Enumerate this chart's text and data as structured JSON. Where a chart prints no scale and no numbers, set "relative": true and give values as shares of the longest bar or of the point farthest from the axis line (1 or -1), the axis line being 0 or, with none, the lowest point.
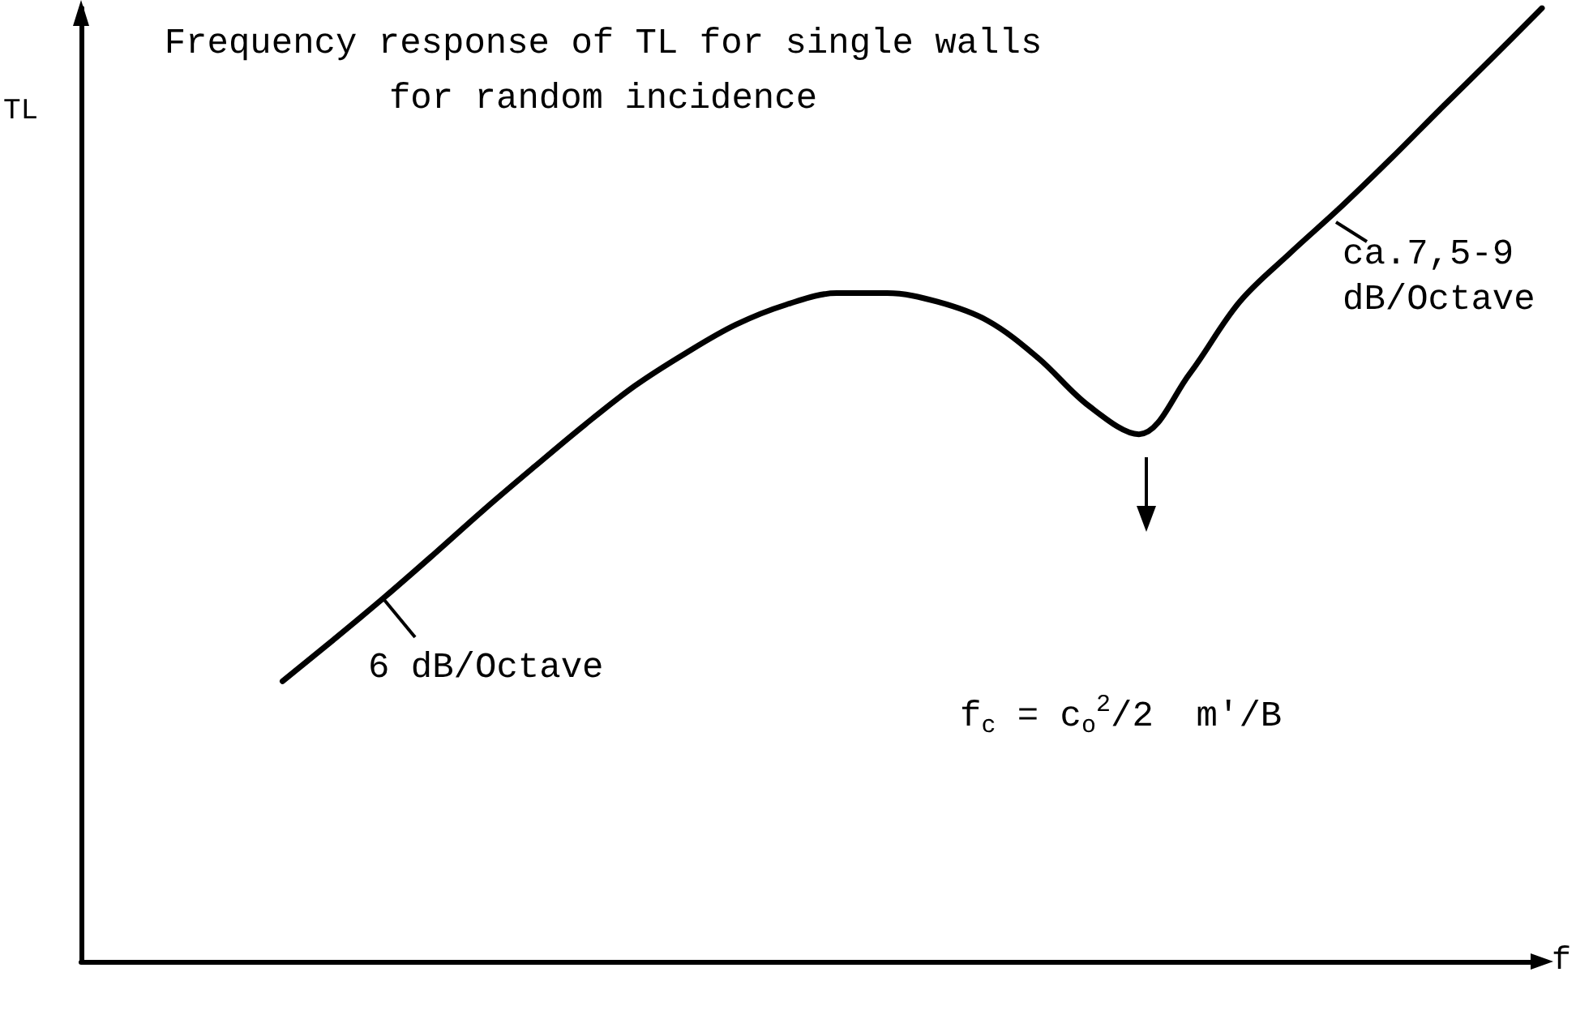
{
  "chart_data": {
    "type": "line",
    "relative": true,
    "title": "Frequency response of TL for single walls\nfor random incidence",
    "xlabel": "f",
    "ylabel": "TL",
    "categories": [
      null,
      null,
      null,
      null,
      null,
      null,
      null,
      null,
      null,
      null,
      null,
      null,
      null,
      null,
      null,
      null,
      null,
      null,
      null,
      null,
      null,
      null,
      null,
      null,
      null,
      null,
      null,
      null,
      null,
      null
    ],
    "series": [
      {
        "color": "#000000",
        "values": [
          null,
          null,
          null,
          null,
          0.294,
          0.337,
          0.381,
          0.427,
          0.474,
          0.519,
          0.563,
          0.604,
          0.638,
          0.668,
          0.689,
          0.701,
          0.701,
          0.692,
          0.672,
          0.633,
          0.583,
          0.553,
          0.616,
          0.692,
          0.743,
          0.791,
          0.842,
          0.895,
          0.947,
          1
        ]
      }
    ],
    "annotations": [
      "6 dB/Octave",
      "ca.7,5-9\ndB/Octave",
      "f$_{c}$ = c$_{o}$$^{2}$/2  m'/B"
    ],
    "marker": "none",
    "line_style": "solid",
    "grid": false
  }
}
